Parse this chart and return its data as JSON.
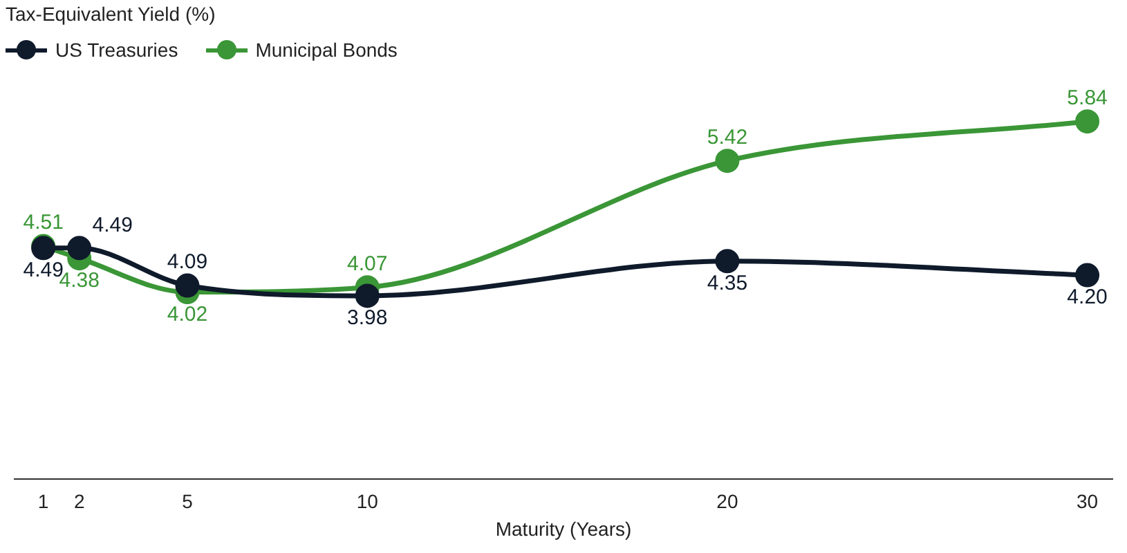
{
  "chart_data": {
    "type": "line",
    "ylabel": "Tax-Equivalent Yield (%)",
    "xlabel": "Maturity (Years)",
    "x": [
      1,
      2,
      5,
      10,
      20,
      30
    ],
    "xlim": [
      0.2,
      30.7
    ],
    "xticks": [
      1,
      2,
      5,
      10,
      20,
      30
    ],
    "series": [
      {
        "name": "US Treasuries",
        "color": "#0f1a2b",
        "values": [
          4.49,
          4.49,
          4.09,
          3.98,
          4.35,
          4.2
        ],
        "value_labels": [
          "4.49",
          "4.49",
          "4.09",
          "3.98",
          "4.35",
          "4.20"
        ]
      },
      {
        "name": "Municipal Bonds",
        "color": "#3a9636",
        "values": [
          4.51,
          4.38,
          4.02,
          4.07,
          5.42,
          5.84
        ],
        "value_labels": [
          "4.51",
          "4.38",
          "4.02",
          "4.07",
          "5.42",
          "5.84"
        ]
      }
    ],
    "grid": false,
    "legend": "top left",
    "marker": "circle",
    "line_style": "solid"
  }
}
